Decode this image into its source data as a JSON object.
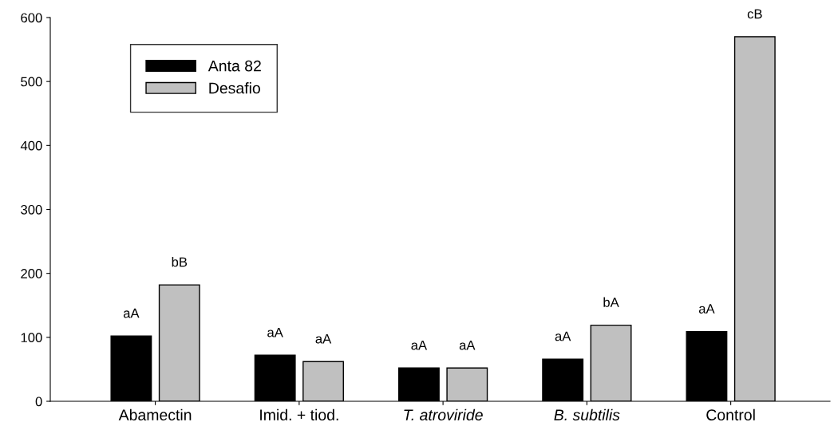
{
  "chart_data": {
    "type": "bar",
    "categories": [
      "Abamectin",
      "Imid. + tiod.",
      "T. atroviride",
      "B. subtilis",
      "Control"
    ],
    "series": [
      {
        "name": "Anta 82",
        "color": "#000000",
        "values": [
          102,
          72,
          52,
          66,
          109
        ],
        "value_labels": [
          "aA",
          "aA",
          "aA",
          "aA",
          "aA"
        ]
      },
      {
        "name": "Desafio",
        "color": "#c0c0c0",
        "values": [
          182,
          62,
          52,
          119,
          570
        ],
        "value_labels": [
          "bB",
          "aA",
          "aA",
          "bA",
          "cB"
        ]
      }
    ],
    "ylim": [
      0,
      600
    ],
    "yticks": [
      0,
      100,
      200,
      300,
      400,
      500,
      600
    ],
    "grid": false,
    "legend": "top left"
  }
}
